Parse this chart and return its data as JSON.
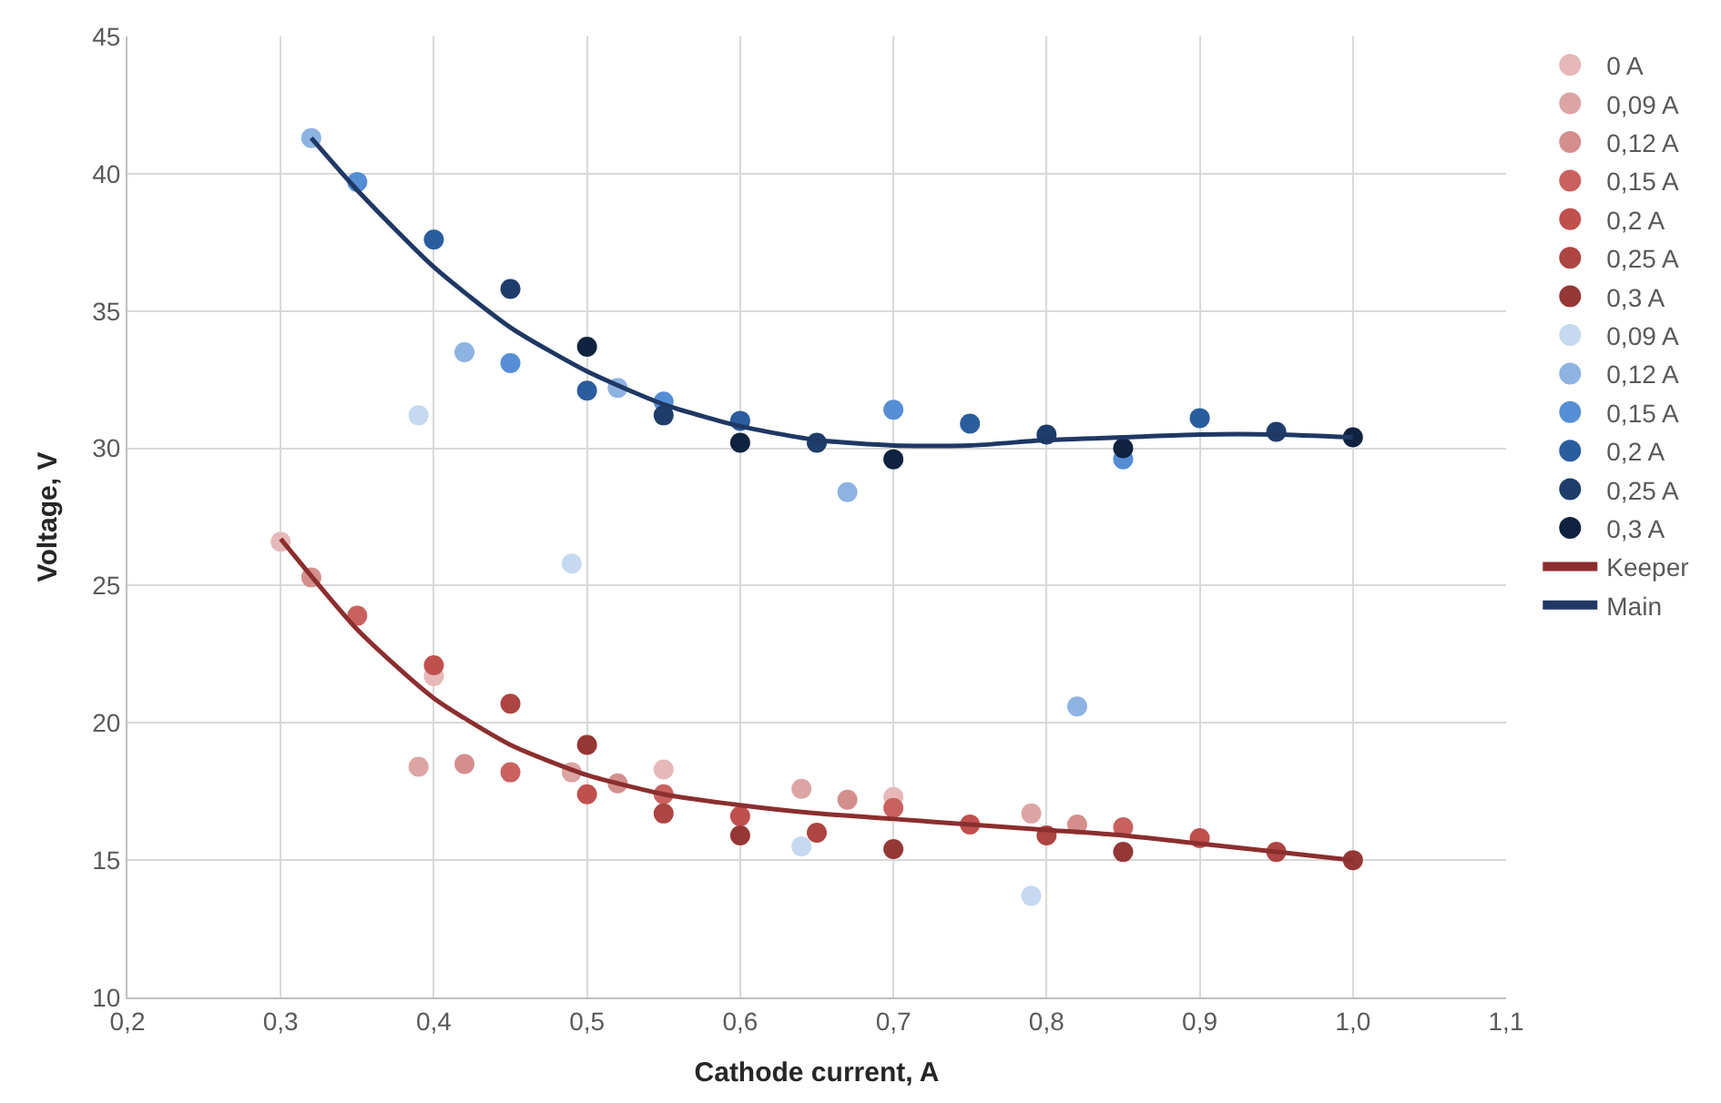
{
  "chart_data": {
    "type": "scatter",
    "xlabel": "Cathode current, A",
    "ylabel": "Voltage, V",
    "xlim": [
      0.2,
      1.1
    ],
    "ylim": [
      10,
      45
    ],
    "xticks": [
      {
        "value": 0.2,
        "label": "0,2"
      },
      {
        "value": 0.3,
        "label": "0,3"
      },
      {
        "value": 0.4,
        "label": "0,4"
      },
      {
        "value": 0.5,
        "label": "0,5"
      },
      {
        "value": 0.6,
        "label": "0,6"
      },
      {
        "value": 0.7,
        "label": "0,7"
      },
      {
        "value": 0.8,
        "label": "0,8"
      },
      {
        "value": 0.9,
        "label": "0,9"
      },
      {
        "value": 1.0,
        "label": "1,0"
      },
      {
        "value": 1.1,
        "label": "1,1"
      }
    ],
    "yticks": [
      10,
      15,
      20,
      25,
      30,
      35,
      40,
      45
    ],
    "grid": true,
    "legend": "right",
    "marker": "circle",
    "series": [
      {
        "name": "0 A",
        "color": "#e6b9b8",
        "x": [
          0.3,
          0.4,
          0.55,
          0.7
        ],
        "values": [
          26.6,
          21.7,
          18.3,
          17.3
        ]
      },
      {
        "name": "0,09 A",
        "color": "#dca5a4",
        "x": [
          0.39,
          0.49,
          0.64,
          0.79
        ],
        "values": [
          18.4,
          18.2,
          17.6,
          16.7
        ]
      },
      {
        "name": "0,12 A",
        "color": "#d48f8d",
        "x": [
          0.32,
          0.42,
          0.52,
          0.67,
          0.82
        ],
        "values": [
          25.3,
          18.5,
          17.8,
          17.2,
          16.3
        ]
      },
      {
        "name": "0,15 A",
        "color": "#c9625f",
        "x": [
          0.35,
          0.45,
          0.55,
          0.7,
          0.85
        ],
        "values": [
          23.9,
          18.2,
          17.4,
          16.9,
          16.2
        ]
      },
      {
        "name": "0,2 A",
        "color": "#c0504d",
        "x": [
          0.4,
          0.5,
          0.6,
          0.75,
          0.9
        ],
        "values": [
          22.1,
          17.4,
          16.6,
          16.3,
          15.8
        ]
      },
      {
        "name": "0,25 A",
        "color": "#ad4542",
        "x": [
          0.45,
          0.55,
          0.65,
          0.8,
          0.95
        ],
        "values": [
          20.7,
          16.7,
          16.0,
          15.9,
          15.3
        ]
      },
      {
        "name": "0,3 A",
        "color": "#953735",
        "x": [
          0.5,
          0.6,
          0.7,
          0.85,
          1.0
        ],
        "values": [
          19.2,
          15.9,
          15.4,
          15.3,
          15.0
        ]
      },
      {
        "name": "0,09 A",
        "color": "#c5d9f1",
        "x": [
          0.39,
          0.49,
          0.64,
          0.79
        ],
        "values": [
          31.2,
          25.8,
          15.5,
          13.7
        ]
      },
      {
        "name": "0,12 A",
        "color": "#8db3e2",
        "x": [
          0.32,
          0.42,
          0.52,
          0.67,
          0.82
        ],
        "values": [
          41.3,
          33.5,
          32.2,
          28.4,
          20.6
        ]
      },
      {
        "name": "0,15 A",
        "color": "#558ed5",
        "x": [
          0.35,
          0.45,
          0.55,
          0.7,
          0.85
        ],
        "values": [
          39.7,
          33.1,
          31.7,
          31.4,
          29.6
        ]
      },
      {
        "name": "0,2 A",
        "color": "#2a5d9f",
        "x": [
          0.4,
          0.5,
          0.6,
          0.75,
          0.9
        ],
        "values": [
          37.6,
          32.1,
          31.0,
          30.9,
          31.1
        ]
      },
      {
        "name": "0,25 A",
        "color": "#1f3d6b",
        "x": [
          0.45,
          0.55,
          0.65,
          0.8,
          0.95
        ],
        "values": [
          35.8,
          31.2,
          30.2,
          30.5,
          30.6
        ]
      },
      {
        "name": "0,3 A",
        "color": "#0f2341",
        "x": [
          0.5,
          0.6,
          0.7,
          0.85,
          1.0
        ],
        "values": [
          33.7,
          30.2,
          29.6,
          30.0,
          30.4
        ]
      },
      {
        "name": "Keeper",
        "type": "line",
        "color": "#8b2e2e",
        "marker": "none",
        "x": [
          0.3,
          0.35,
          0.4,
          0.45,
          0.5,
          0.55,
          0.6,
          0.65,
          0.7,
          0.75,
          0.8,
          0.85,
          0.9,
          0.95,
          1.0
        ],
        "values": [
          26.7,
          23.4,
          20.9,
          19.2,
          18.1,
          17.4,
          17.0,
          16.7,
          16.5,
          16.3,
          16.1,
          15.9,
          15.6,
          15.3,
          15.0
        ]
      },
      {
        "name": "Main",
        "type": "line",
        "color": "#1f3864",
        "marker": "none",
        "x": [
          0.32,
          0.35,
          0.4,
          0.45,
          0.5,
          0.55,
          0.6,
          0.65,
          0.7,
          0.75,
          0.8,
          0.85,
          0.9,
          0.95,
          1.0
        ],
        "values": [
          41.3,
          39.4,
          36.6,
          34.4,
          32.8,
          31.6,
          30.8,
          30.3,
          30.1,
          30.1,
          30.3,
          30.4,
          30.5,
          30.5,
          30.4
        ]
      }
    ]
  }
}
